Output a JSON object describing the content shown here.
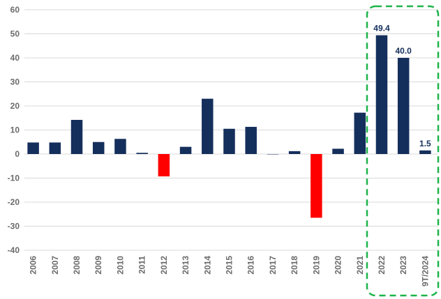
{
  "chart_data": {
    "type": "bar",
    "categories": [
      "2006",
      "2007",
      "2008",
      "2009",
      "2010",
      "2011",
      "2012",
      "2013",
      "2014",
      "2015",
      "2016",
      "2017",
      "2018",
      "2019",
      "2020",
      "2021",
      "2022",
      "2023",
      "9T/2024"
    ],
    "values": [
      4.8,
      4.8,
      14.2,
      5.0,
      6.3,
      0.5,
      -9.3,
      3.0,
      23.0,
      10.5,
      11.3,
      0.0,
      1.2,
      -26.5,
      2.2,
      17.2,
      49.4,
      40.0,
      1.5
    ],
    "ylim": [
      -40,
      60
    ],
    "yticks": [
      -40,
      -30,
      -20,
      -10,
      0,
      10,
      20,
      30,
      40,
      50,
      60
    ],
    "data_labels": [
      {
        "category": "2022",
        "text": "49.4"
      },
      {
        "category": "2023",
        "text": "40.0"
      },
      {
        "category": "9T/2024",
        "text": "1.5"
      }
    ],
    "highlight_categories": [
      "2022",
      "2023",
      "9T/2024"
    ],
    "grid": true,
    "legend": "none",
    "colors": {
      "positive": "#152f5c",
      "negative": "#ff0000",
      "grid": "#d9d9d9",
      "highlight_box": "#1db44a",
      "tick_text": "#6b6b6b"
    }
  }
}
